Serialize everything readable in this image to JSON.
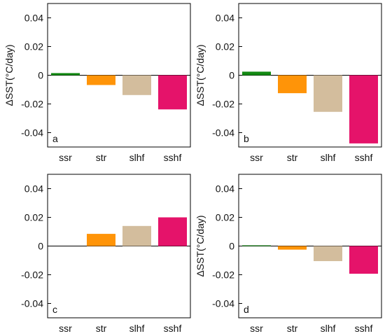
{
  "figure": {
    "panel_order": [
      "a",
      "b",
      "c",
      "d"
    ]
  },
  "chart_data": [
    {
      "type": "bar",
      "panel_label": "a",
      "categories": [
        "ssr",
        "str",
        "slhf",
        "sshf"
      ],
      "values": [
        0.0015,
        -0.0068,
        -0.0138,
        -0.0238
      ],
      "colors": [
        "#138a13",
        "#ff9408",
        "#d3bd9d",
        "#e5136a"
      ],
      "ylabel": "ΔSST(°C/day)",
      "ylim": [
        -0.05,
        0.05
      ],
      "yticks": [
        "0.04",
        "0.02",
        "0",
        "-0.02",
        "-0.04"
      ],
      "ytick_values": [
        0.04,
        0.02,
        0,
        -0.02,
        -0.04
      ],
      "grid": false,
      "zero_line": true
    },
    {
      "type": "bar",
      "panel_label": "b",
      "categories": [
        "ssr",
        "str",
        "slhf",
        "sshf"
      ],
      "values": [
        0.0025,
        -0.0125,
        -0.0255,
        -0.0475
      ],
      "colors": [
        "#138a13",
        "#ff9408",
        "#d3bd9d",
        "#e5136a"
      ],
      "ylabel": "ΔSST(°C/day)",
      "ylim": [
        -0.05,
        0.05
      ],
      "yticks": [
        "0.04",
        "0.02",
        "0",
        "-0.02",
        "-0.04"
      ],
      "ytick_values": [
        0.04,
        0.02,
        0,
        -0.02,
        -0.04
      ],
      "grid": false,
      "zero_line": true
    },
    {
      "type": "bar",
      "panel_label": "c",
      "categories": [
        "ssr",
        "str",
        "slhf",
        "sshf"
      ],
      "values": [
        0.0,
        0.0085,
        0.014,
        0.02
      ],
      "colors": [
        "#138a13",
        "#ff9408",
        "#d3bd9d",
        "#e5136a"
      ],
      "ylabel": "",
      "ylim": [
        -0.05,
        0.05
      ],
      "yticks": [
        "0.04",
        "0.02",
        "0",
        "-0.02",
        "-0.04"
      ],
      "ytick_values": [
        0.04,
        0.02,
        0,
        -0.02,
        -0.04
      ],
      "grid": false,
      "zero_line": true
    },
    {
      "type": "bar",
      "panel_label": "d",
      "categories": [
        "ssr",
        "str",
        "slhf",
        "sshf"
      ],
      "values": [
        0.0005,
        -0.0025,
        -0.0105,
        -0.0193
      ],
      "colors": [
        "#138a13",
        "#ff9408",
        "#d3bd9d",
        "#e5136a"
      ],
      "ylabel": "ΔSST(°C/day)",
      "ylim": [
        -0.05,
        0.05
      ],
      "yticks": [
        "0.04",
        "0.02",
        "0",
        "-0.02",
        "-0.04"
      ],
      "ytick_values": [
        0.04,
        0.02,
        0,
        -0.02,
        -0.04
      ],
      "grid": false,
      "zero_line": true
    }
  ]
}
